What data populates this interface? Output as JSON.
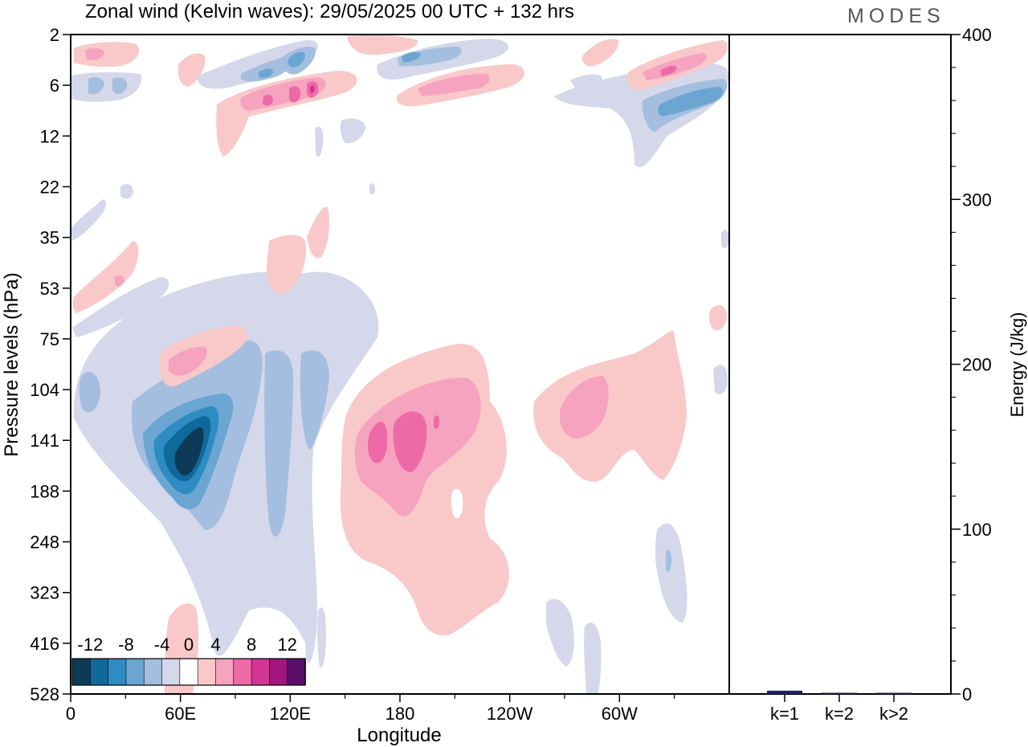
{
  "title": "Zonal wind (Kelvin waves):  29/05/2025  00 UTC  + 132 hrs",
  "logo": "MODES",
  "chart_data": [
    {
      "type": "heatmap",
      "xlabel": "Longitude",
      "ylabel": "Pressure levels (hPa)",
      "x_ticks": [
        "0",
        "60E",
        "120E",
        "180",
        "120W",
        "60W"
      ],
      "x_tick_degrees": [
        0,
        60,
        120,
        180,
        240,
        300
      ],
      "xlim": [
        0,
        360
      ],
      "y_ticks": [
        "2",
        "6",
        "12",
        "22",
        "35",
        "53",
        "75",
        "104",
        "141",
        "188",
        "248",
        "323",
        "416",
        "528"
      ],
      "y_scale": "level-index (top = 2 hPa, bottom = 528 hPa)",
      "colorbar": {
        "labels": [
          "-12",
          "-8",
          "-4",
          "0",
          "4",
          "8",
          "12"
        ],
        "levels": [
          -14,
          -12,
          -10,
          -8,
          -6,
          -4,
          -2,
          2,
          4,
          6,
          8,
          10,
          12,
          14
        ],
        "colors": [
          "#0d3b57",
          "#0f6a9b",
          "#2e8cc2",
          "#6aa6d1",
          "#a4bedf",
          "#d4d8ea",
          "#ffffff",
          "#f9c9c9",
          "#f6a3bf",
          "#ee6aa7",
          "#d23592",
          "#a0157f",
          "#5a0f6b"
        ]
      },
      "features": [
        {
          "sign": "negative",
          "peak_ms": -13,
          "lon": 50,
          "level_hpa": 141
        },
        {
          "sign": "negative",
          "peak_ms": -5,
          "lon": 90,
          "level_hpa": 104
        },
        {
          "sign": "positive",
          "peak_ms": 7,
          "lon": 185,
          "level_hpa": 141
        },
        {
          "sign": "positive",
          "peak_ms": 5,
          "lon": 285,
          "level_hpa": 120
        },
        {
          "sign": "positive",
          "peak_ms": 7,
          "lon": 100,
          "level_hpa": 6
        },
        {
          "sign": "negative",
          "peak_ms": -6,
          "lon": 345,
          "level_hpa": 8
        }
      ]
    },
    {
      "type": "bar",
      "categories": [
        "k=1",
        "k=2",
        "k>2"
      ],
      "values": [
        2,
        0.5,
        0.5
      ],
      "ylabel": "Energy (J/kg)",
      "ylim": [
        0,
        400
      ],
      "y_ticks": [
        "0",
        "100",
        "200",
        "300",
        "400"
      ],
      "bar_color": "#1a1f6e"
    }
  ]
}
